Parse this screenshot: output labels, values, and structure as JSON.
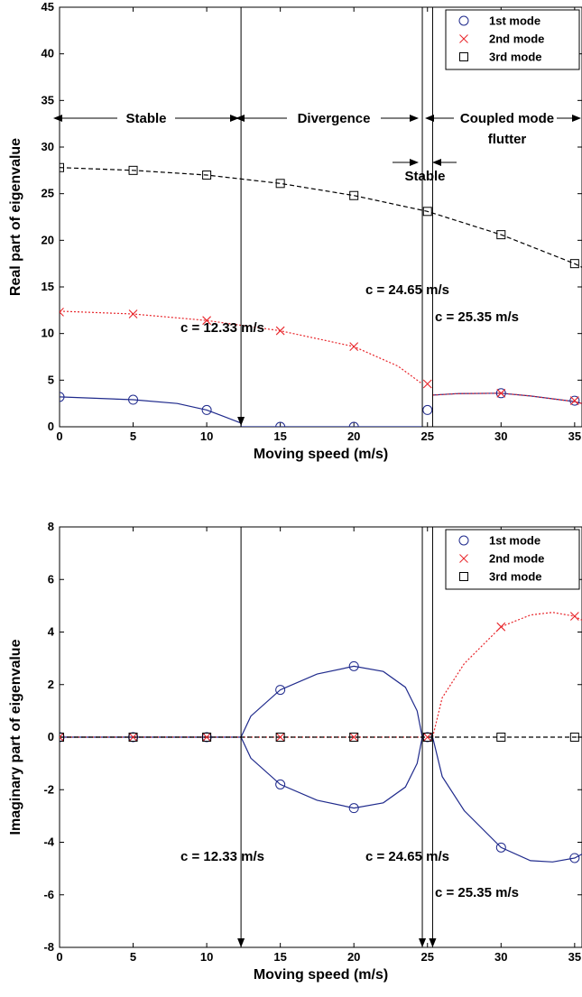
{
  "chart_data": [
    {
      "type": "line",
      "xlabel": "Moving speed  (m/s)",
      "ylabel": "Real part of eigenvalue",
      "xlim": [
        0,
        35.5
      ],
      "ylim": [
        0,
        45
      ],
      "xticks": [
        "0",
        "5",
        "10",
        "15",
        "20",
        "25",
        "30",
        "35"
      ],
      "yticks": [
        "0",
        "5",
        "10",
        "15",
        "20",
        "25",
        "30",
        "35",
        "40",
        "45"
      ],
      "grid": false,
      "legend_position": "top-right",
      "series": [
        {
          "name": "1st mode",
          "color": "#1f2a8c",
          "line_style": "solid",
          "marker": "circle",
          "curve": [
            [
              0,
              3.2
            ],
            [
              5,
              2.9
            ],
            [
              8,
              2.5
            ],
            [
              10,
              1.8
            ],
            [
              11,
              1.2
            ],
            [
              12.33,
              0.4
            ],
            [
              12.33,
              0
            ],
            [
              24.65,
              0
            ]
          ],
          "curve2": [
            [
              25.35,
              3.4
            ],
            [
              27,
              3.55
            ],
            [
              30,
              3.6
            ],
            [
              32,
              3.3
            ],
            [
              35,
              2.7
            ],
            [
              35.5,
              2.5
            ]
          ],
          "markers": [
            [
              0,
              3.2
            ],
            [
              5,
              2.9
            ],
            [
              10,
              1.8
            ],
            [
              15,
              0
            ],
            [
              20,
              0
            ],
            [
              25,
              1.8
            ],
            [
              30,
              3.6
            ],
            [
              35,
              2.8
            ]
          ]
        },
        {
          "name": "2nd mode",
          "color": "#e8262b",
          "line_style": "dotted",
          "marker": "x",
          "curve": [
            [
              0,
              12.4
            ],
            [
              5,
              12.1
            ],
            [
              10,
              11.4
            ],
            [
              15,
              10.3
            ],
            [
              20,
              8.6
            ],
            [
              23,
              6.5
            ],
            [
              24.65,
              4.6
            ]
          ],
          "curve2": [
            [
              25.35,
              3.4
            ],
            [
              27,
              3.55
            ],
            [
              30,
              3.6
            ],
            [
              32,
              3.3
            ],
            [
              35,
              2.7
            ],
            [
              35.5,
              2.5
            ]
          ],
          "markers": [
            [
              0,
              12.3
            ],
            [
              5,
              12.1
            ],
            [
              10,
              11.4
            ],
            [
              15,
              10.3
            ],
            [
              20,
              8.6
            ],
            [
              25,
              4.6
            ],
            [
              30,
              3.6
            ],
            [
              35,
              2.8
            ]
          ]
        },
        {
          "name": "3rd mode",
          "color": "#000000",
          "line_style": "dashed",
          "marker": "square",
          "curve": [
            [
              0,
              27.8
            ],
            [
              5,
              27.5
            ],
            [
              10,
              27.0
            ],
            [
              15,
              26.1
            ],
            [
              20,
              24.8
            ],
            [
              25,
              23.1
            ],
            [
              30,
              20.6
            ],
            [
              35,
              17.5
            ],
            [
              35.5,
              17.1
            ]
          ],
          "markers": [
            [
              0,
              27.8
            ],
            [
              5,
              27.5
            ],
            [
              10,
              27.0
            ],
            [
              15,
              26.1
            ],
            [
              20,
              24.8
            ],
            [
              25,
              23.1
            ],
            [
              30,
              20.6
            ],
            [
              35,
              17.5
            ]
          ]
        }
      ],
      "vertical_lines": [
        12.33,
        24.65,
        25.35
      ],
      "region_labels": [
        "Stable",
        "Divergence",
        "Coupled mode",
        "flutter",
        "Stable"
      ],
      "annotations": [
        "c = 12.33 m/s",
        "c = 24.65 m/s",
        "c = 25.35 m/s"
      ]
    },
    {
      "type": "line",
      "xlabel": "Moving speed  (m/s)",
      "ylabel": "Imaginary part of eigenvalue",
      "xlim": [
        0,
        35.5
      ],
      "ylim": [
        -8,
        8
      ],
      "xticks": [
        "0",
        "5",
        "10",
        "15",
        "20",
        "25",
        "30",
        "35"
      ],
      "yticks": [
        "-8",
        "-6",
        "-4",
        "-2",
        "0",
        "2",
        "4",
        "6",
        "8"
      ],
      "grid": false,
      "legend_position": "top-right",
      "series": [
        {
          "name": "1st mode",
          "color": "#1f2a8c",
          "line_style": "solid",
          "marker": "circle",
          "curve": [
            [
              0,
              0
            ],
            [
              12.33,
              0
            ]
          ],
          "curve_upper": [
            [
              12.33,
              0
            ],
            [
              13,
              0.8
            ],
            [
              15,
              1.8
            ],
            [
              17.5,
              2.4
            ],
            [
              20,
              2.7
            ],
            [
              22,
              2.5
            ],
            [
              23.5,
              1.9
            ],
            [
              24.3,
              1.0
            ],
            [
              24.65,
              0
            ]
          ],
          "curve_lower": [
            [
              12.33,
              0
            ],
            [
              13,
              -0.8
            ],
            [
              15,
              -1.8
            ],
            [
              17.5,
              -2.4
            ],
            [
              20,
              -2.7
            ],
            [
              22,
              -2.5
            ],
            [
              23.5,
              -1.9
            ],
            [
              24.3,
              -1.0
            ],
            [
              24.65,
              0
            ]
          ],
          "curve_flutter": [
            [
              25.35,
              0
            ],
            [
              26,
              -1.5
            ],
            [
              27.5,
              -2.8
            ],
            [
              30,
              -4.2
            ],
            [
              32,
              -4.7
            ],
            [
              33.5,
              -4.75
            ],
            [
              35,
              -4.6
            ],
            [
              35.5,
              -4.45
            ]
          ],
          "markers": [
            [
              0,
              0
            ],
            [
              5,
              0
            ],
            [
              10,
              0
            ],
            [
              15,
              1.8
            ],
            [
              15,
              -1.8
            ],
            [
              20,
              2.7
            ],
            [
              20,
              -2.7
            ],
            [
              25,
              0
            ],
            [
              30,
              -4.2
            ],
            [
              35,
              -4.6
            ]
          ]
        },
        {
          "name": "2nd mode",
          "color": "#e8262b",
          "line_style": "dotted",
          "marker": "x",
          "curve": [
            [
              0,
              0
            ],
            [
              24.65,
              0
            ]
          ],
          "curve_flutter": [
            [
              25.35,
              0
            ],
            [
              26,
              1.5
            ],
            [
              27.5,
              2.8
            ],
            [
              30,
              4.2
            ],
            [
              32,
              4.65
            ],
            [
              33.5,
              4.75
            ],
            [
              35,
              4.6
            ],
            [
              35.5,
              4.45
            ]
          ],
          "markers": [
            [
              0,
              0
            ],
            [
              5,
              0
            ],
            [
              10,
              0
            ],
            [
              15,
              0
            ],
            [
              20,
              0
            ],
            [
              25,
              0
            ],
            [
              30,
              4.2
            ],
            [
              35,
              4.6
            ]
          ]
        },
        {
          "name": "3rd mode",
          "color": "#000000",
          "line_style": "dashed",
          "marker": "square",
          "curve": [
            [
              0,
              0
            ],
            [
              35.5,
              0
            ]
          ],
          "markers": [
            [
              0,
              0
            ],
            [
              5,
              0
            ],
            [
              10,
              0
            ],
            [
              15,
              0
            ],
            [
              20,
              0
            ],
            [
              25,
              0
            ],
            [
              30,
              0
            ],
            [
              35,
              0
            ]
          ]
        }
      ],
      "vertical_lines": [
        12.33,
        24.65,
        25.35
      ],
      "annotations": [
        "c = 12.33 m/s",
        "c = 24.65 m/s",
        "c = 25.35 m/s"
      ]
    }
  ]
}
